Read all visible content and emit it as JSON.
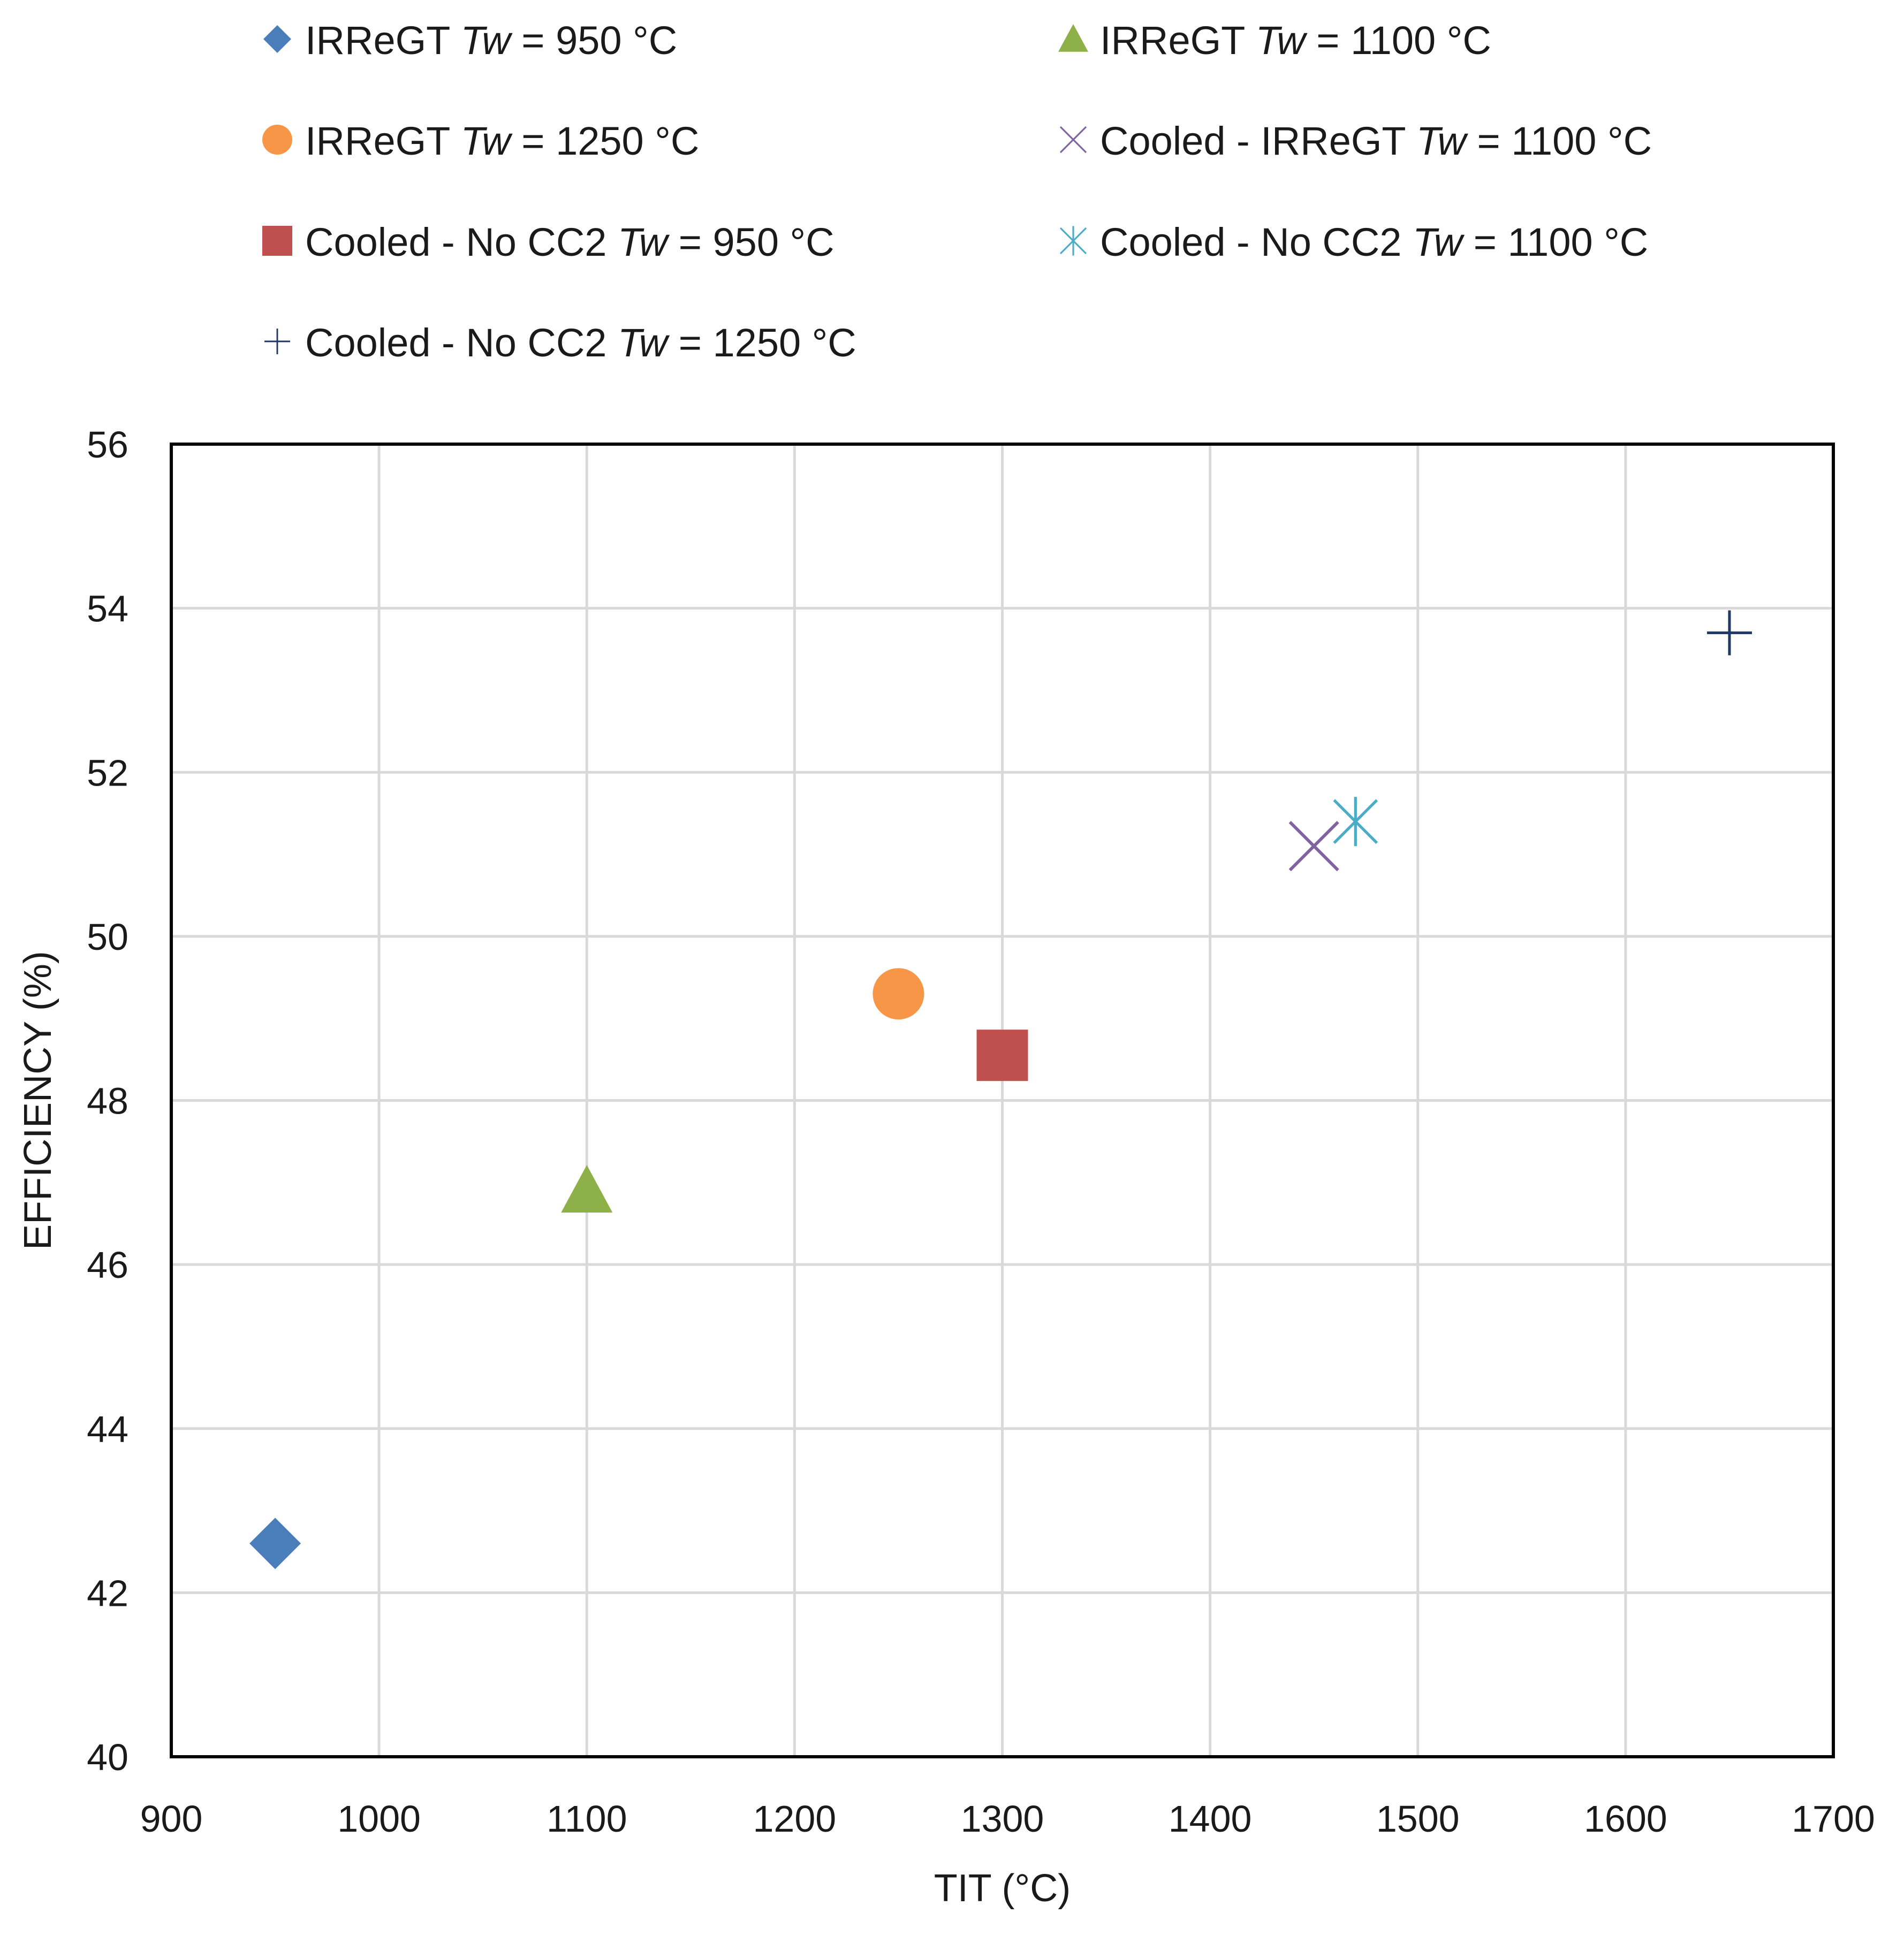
{
  "chart_data": {
    "type": "scatter",
    "title": "",
    "xlabel": "TIT (°C)",
    "ylabel": "EFFICIENCY (%)",
    "xlim": [
      900,
      1700
    ],
    "ylim": [
      40,
      56
    ],
    "xticks": [
      900,
      1000,
      1100,
      1200,
      1300,
      1400,
      1500,
      1600,
      1700
    ],
    "yticks": [
      40,
      42,
      44,
      46,
      48,
      50,
      52,
      54,
      56
    ],
    "grid": true,
    "legend_position": "top",
    "series": [
      {
        "name": "IRReGT Tw = 950 °C",
        "label_prefix": "IRReGT ",
        "label_suffix": " = 950 °C",
        "marker": "diamond",
        "color": "#4a7ebb",
        "x": 950,
        "y": 42.6
      },
      {
        "name": "IRReGT Tw = 1100 °C",
        "label_prefix": "IRReGT ",
        "label_suffix": " = 1100 °C",
        "marker": "triangle",
        "color": "#8db048",
        "x": 1100,
        "y": 46.9
      },
      {
        "name": "IRReGT Tw = 1250 °C",
        "label_prefix": "IRReGT ",
        "label_suffix": " = 1250 °C",
        "marker": "circle",
        "color": "#f79646",
        "x": 1250,
        "y": 49.3
      },
      {
        "name": "Cooled - IRReGT Tw = 1100 °C",
        "label_prefix": "Cooled - IRReGT ",
        "label_suffix": " = 1100 °C",
        "marker": "x",
        "color": "#8064a2",
        "x": 1450,
        "y": 51.1
      },
      {
        "name": "Cooled - No CC2 Tw = 950 °C",
        "label_prefix": "Cooled - No CC2 ",
        "label_suffix": " = 950 °C",
        "marker": "square",
        "color": "#c0504d",
        "x": 1300,
        "y": 48.55
      },
      {
        "name": "Cooled - No CC2 Tw = 1100 °C",
        "label_prefix": "Cooled - No CC2 ",
        "label_suffix": " = 1100  °C",
        "marker": "asterisk",
        "color": "#4bacc6",
        "x": 1470,
        "y": 51.4
      },
      {
        "name": "Cooled - No CC2 Tw = 1250 °C",
        "label_prefix": "Cooled - No CC2 ",
        "label_suffix": " = 1250 °C",
        "marker": "plus",
        "color": "#1f3864",
        "x": 1650,
        "y": 53.7
      }
    ],
    "legend_symbol": "Tw"
  }
}
